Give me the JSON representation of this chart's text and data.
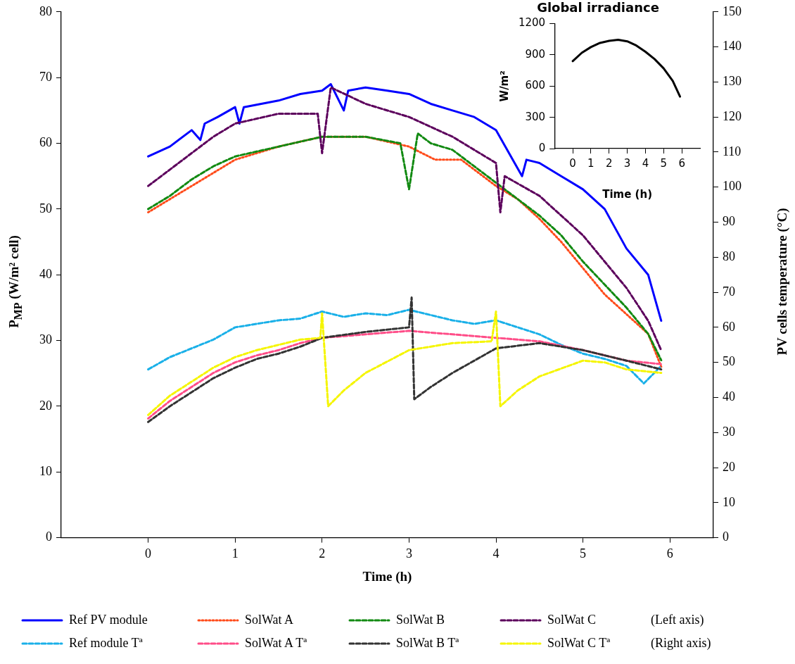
{
  "chart_data": [
    {
      "type": "line",
      "xlabel": "Time (h)",
      "ylabel": "P$_{MP}$ (W/m² cell)",
      "y2label": "PV cells temperature (°C)",
      "xlim": [
        -1,
        6.5
      ],
      "xticks": [
        0,
        1,
        2,
        3,
        4,
        5,
        6
      ],
      "ylim": [
        0,
        80
      ],
      "yticks": [
        0,
        10,
        20,
        30,
        40,
        50,
        60,
        70,
        80
      ],
      "y2lim": [
        0,
        150
      ],
      "y2ticks": [
        0,
        10,
        20,
        30,
        40,
        50,
        60,
        70,
        80,
        90,
        100,
        110,
        120,
        130,
        140,
        150
      ],
      "grid": false,
      "legend": "bottom",
      "marker": "none",
      "annotations": [
        "(Left axis)",
        "(Right axis)"
      ],
      "series": [
        {
          "name": "Ref PV module",
          "color": "#0000ff",
          "line_style": "solid",
          "x": [
            0,
            0.25,
            0.5,
            0.6,
            0.65,
            0.8,
            1,
            1.05,
            1.1,
            1.5,
            1.75,
            2,
            2.1,
            2.25,
            2.3,
            2.5,
            2.75,
            3,
            3.25,
            3.5,
            3.75,
            4,
            4.3,
            4.35,
            4.5,
            4.75,
            5,
            5.25,
            5.5,
            5.75,
            5.9
          ],
          "values": [
            58,
            59.5,
            62,
            60.5,
            63,
            64,
            65.5,
            63,
            65.5,
            66.5,
            67.5,
            68,
            69,
            65,
            68,
            68.5,
            68,
            67.5,
            66,
            65,
            64,
            62,
            55,
            57.5,
            57,
            55,
            53,
            50,
            44,
            40,
            33
          ]
        },
        {
          "name": "SolWat A",
          "color": "#ff4b1a",
          "line_style": "dotted",
          "x": [
            0,
            0.25,
            0.5,
            0.75,
            1,
            1.5,
            2,
            2.5,
            3,
            3.3,
            3.6,
            4,
            4.25,
            4.5,
            4.75,
            5,
            5.25,
            5.5,
            5.75,
            5.9
          ],
          "values": [
            49.5,
            51.5,
            53.5,
            55.5,
            57.5,
            59.5,
            61,
            61,
            59.5,
            57.5,
            57.5,
            53.5,
            51.5,
            48.5,
            45,
            41,
            37,
            34,
            31,
            26
          ]
        },
        {
          "name": "SolWat B",
          "color": "#128a12",
          "line_style": "dashed",
          "x": [
            0,
            0.25,
            0.5,
            0.75,
            1,
            1.5,
            2,
            2.5,
            2.9,
            3,
            3.1,
            3.25,
            3.5,
            4,
            4.25,
            4.5,
            4.75,
            5,
            5.25,
            5.5,
            5.75,
            5.9
          ],
          "values": [
            50,
            52,
            54.5,
            56.5,
            58,
            59.5,
            61,
            61,
            60,
            53,
            61.5,
            60,
            59,
            54,
            51.5,
            49,
            46,
            42,
            38.5,
            35,
            31,
            27
          ]
        },
        {
          "name": "SolWat C",
          "color": "#5c005c",
          "line_style": "dashed",
          "x": [
            0,
            0.25,
            0.5,
            0.75,
            1,
            1.5,
            1.95,
            2,
            2.1,
            2.5,
            3,
            3.5,
            4,
            4.05,
            4.1,
            4.5,
            5,
            5.5,
            5.75,
            5.9
          ],
          "values": [
            53.5,
            56,
            58.5,
            61,
            63,
            64.5,
            64.5,
            58.5,
            68.5,
            66,
            64,
            61,
            57,
            49.5,
            55,
            52,
            46,
            38,
            33,
            28.5
          ]
        },
        {
          "name": "Ref module Tª",
          "color": "#1ab0e8",
          "line_style": "dashed",
          "axis": "y2",
          "x": [
            0,
            0.25,
            0.5,
            0.75,
            1,
            1.25,
            1.5,
            1.75,
            2,
            2.25,
            2.5,
            2.75,
            3,
            3.25,
            3.5,
            3.75,
            4,
            4.25,
            4.5,
            4.75,
            5,
            5.25,
            5.5,
            5.7,
            5.9
          ],
          "values": [
            48,
            51.5,
            54,
            56.5,
            60,
            61,
            62,
            62.5,
            64.5,
            63,
            64,
            63.5,
            65,
            63.5,
            62,
            61,
            62,
            60,
            58,
            55,
            52.5,
            51,
            49,
            44,
            49
          ]
        },
        {
          "name": "SolWat A Tª",
          "color": "#ff4d88",
          "line_style": "dashed",
          "axis": "y2",
          "x": [
            0,
            0.25,
            0.5,
            0.75,
            1,
            1.25,
            1.5,
            1.75,
            2,
            2.5,
            3,
            3.5,
            4,
            4.5,
            5,
            5.5,
            5.9
          ],
          "values": [
            34,
            39,
            43,
            47,
            50,
            52,
            53.5,
            55.5,
            57,
            58,
            59,
            58,
            57,
            56,
            53.5,
            50.5,
            49.5
          ]
        },
        {
          "name": "SolWat B Tª",
          "color": "#333333",
          "line_style": "dashed",
          "axis": "y2",
          "x": [
            0,
            0.25,
            0.5,
            0.75,
            1,
            1.25,
            1.5,
            1.75,
            2,
            2.5,
            3,
            3.03,
            3.06,
            3.25,
            3.5,
            4,
            4.5,
            5,
            5.5,
            5.9
          ],
          "values": [
            33,
            37.5,
            41.5,
            45.5,
            48.5,
            51,
            52.5,
            54.5,
            57,
            58.7,
            60,
            68.5,
            39.5,
            43,
            47,
            54,
            55.5,
            53.5,
            50.5,
            48
          ]
        },
        {
          "name": "SolWat C Tª",
          "color": "#f5f500",
          "line_style": "dashed",
          "axis": "y2",
          "x": [
            0,
            0.25,
            0.5,
            0.75,
            1,
            1.25,
            1.5,
            1.75,
            1.98,
            2,
            2.07,
            2.25,
            2.5,
            3,
            3.5,
            3.95,
            4,
            4.05,
            4.25,
            4.5,
            5,
            5.25,
            5.5,
            5.9
          ],
          "values": [
            35,
            40.5,
            44.5,
            48.5,
            51.5,
            53.5,
            55,
            56.5,
            57,
            64,
            37.5,
            42,
            47,
            53.5,
            55.5,
            56,
            64.5,
            37.5,
            42,
            46,
            50.5,
            50,
            48,
            47
          ]
        }
      ]
    },
    {
      "type": "line",
      "title": "Global irradiance",
      "xlabel": "Time (h)",
      "ylabel": "W/m²",
      "xlim": [
        -1,
        7
      ],
      "xticks": [
        0,
        1,
        2,
        3,
        4,
        5,
        6
      ],
      "ylim": [
        0,
        1200
      ],
      "yticks": [
        0,
        300,
        600,
        900,
        1200
      ],
      "grid": false,
      "legend": false,
      "marker": "none",
      "series": [
        {
          "color": "#000000",
          "line_style": "solid",
          "x": [
            0,
            0.5,
            1,
            1.5,
            2,
            2.5,
            3,
            3.5,
            4,
            4.5,
            5,
            5.5,
            5.9
          ],
          "values": [
            840,
            920,
            975,
            1015,
            1035,
            1045,
            1030,
            990,
            930,
            860,
            770,
            650,
            500
          ]
        }
      ]
    }
  ]
}
